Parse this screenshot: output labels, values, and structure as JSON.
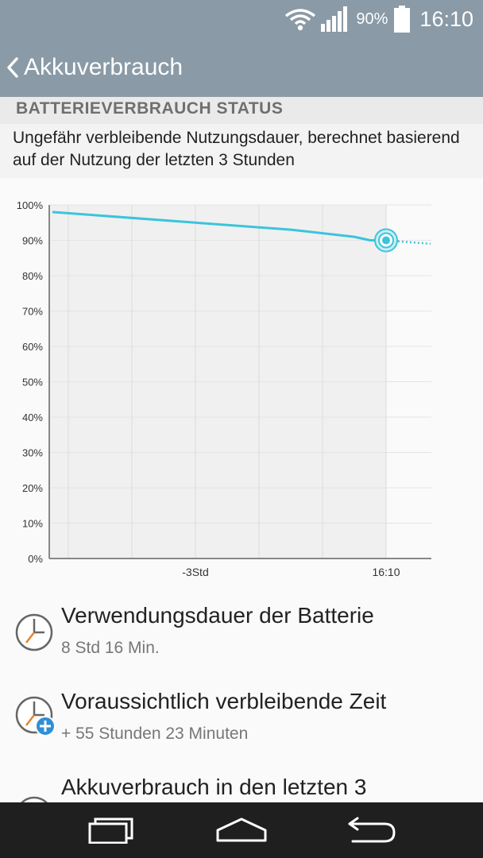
{
  "status_bar": {
    "battery_percent": "90%",
    "time": "16:10",
    "icons": [
      "wifi-icon",
      "signal-icon",
      "battery-icon"
    ]
  },
  "app_bar": {
    "title": "Akkuverbrauch",
    "back_icon": "chevron-left-icon"
  },
  "section": {
    "header": "BATTERIEVERBRAUCH STATUS",
    "description": "Ungefähr verbleibende Nutzungsdauer, berechnet basierend auf der Nutzung der letzten 3 Stunden"
  },
  "chart_data": {
    "type": "line",
    "title": "",
    "xlabel": "",
    "ylabel": "",
    "ylim": [
      0,
      100
    ],
    "yticks": [
      "100%",
      "90%",
      "80%",
      "70%",
      "60%",
      "50%",
      "40%",
      "30%",
      "20%",
      "10%",
      "0%"
    ],
    "xtick_labels": [
      "-3Std",
      "16:10"
    ],
    "grid": true,
    "series": [
      {
        "style": "solid",
        "color": "#3bc4dc",
        "x": [
          -5.25,
          -3,
          -1.5,
          -0.5,
          -0.25,
          0
        ],
        "y": [
          98,
          95,
          93,
          91,
          90,
          90
        ]
      },
      {
        "style": "dotted",
        "color": "#3bc4dc",
        "x": [
          0,
          0.7
        ],
        "y": [
          90,
          89
        ]
      }
    ],
    "current_point": {
      "x": 0,
      "y": 90
    },
    "x_units": "hours relative to 16:10"
  },
  "list": [
    {
      "icon": "clock-icon",
      "title": "Verwendungsdauer der Batterie",
      "subtitle": "8 Std 16 Min."
    },
    {
      "icon": "clock-plus-icon",
      "title": "Voraussichtlich verbleibende Zeit",
      "subtitle": "+ 55 Stunden 23 Minuten"
    },
    {
      "icon": "clock-icon",
      "title": "Akkuverbrauch in den letzten 3",
      "subtitle": ""
    }
  ],
  "nav_bar": {
    "buttons": [
      "recent-apps-icon",
      "home-icon",
      "back-icon"
    ]
  },
  "colors": {
    "app_bar": "#8a9aa6",
    "accent": "#3bc4dc",
    "nav_bar": "#1f1f1f"
  }
}
